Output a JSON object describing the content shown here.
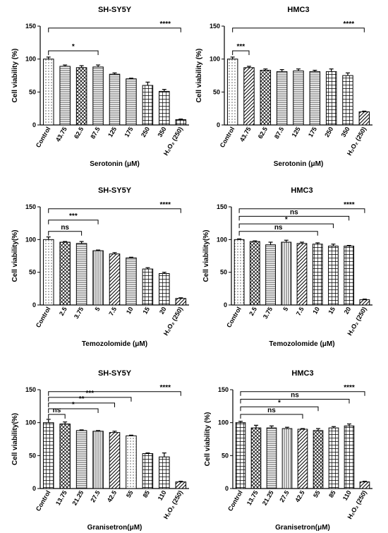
{
  "chart_data": [
    {
      "type": "bar",
      "title": "SH-SY5Y",
      "ylabel": "Cell viability (%)",
      "xlabel": "Serotonin (μM)",
      "ylim": [
        0,
        150
      ],
      "yticks": [
        0,
        50,
        100,
        150
      ],
      "categories": [
        "Control",
        "43.75",
        "62.5",
        "87.5",
        "125",
        "175",
        "250",
        "350",
        "H₂O₂ (250)"
      ],
      "values": [
        100,
        89,
        87,
        88,
        77,
        70,
        60,
        51,
        8
      ],
      "errors": [
        3,
        2,
        3,
        3,
        2,
        1,
        5,
        3,
        1
      ],
      "patterns": [
        "dots",
        "hlines",
        "cross",
        "hlines",
        "hlines",
        "hlines",
        "grid",
        "grid",
        "grid"
      ],
      "brackets": [
        {
          "from": 0,
          "to": 3,
          "label": "*"
        },
        {
          "from": 0,
          "to": 8,
          "label": "****"
        }
      ]
    },
    {
      "type": "bar",
      "title": "HMC3",
      "ylabel": "Cell viability (%)",
      "xlabel": "Serotonin (μM)",
      "ylim": [
        0,
        150
      ],
      "yticks": [
        0,
        50,
        100,
        150
      ],
      "categories": [
        "Control",
        "43.75",
        "62.5",
        "87.5",
        "125",
        "175",
        "250",
        "350",
        "H₂O₂ (250)"
      ],
      "values": [
        100,
        87,
        83,
        81,
        82,
        81,
        81,
        75,
        20
      ],
      "errors": [
        3,
        2,
        2,
        3,
        3,
        2,
        4,
        4,
        1
      ],
      "patterns": [
        "dots",
        "diag",
        "cross",
        "hlines",
        "hlines",
        "hlines",
        "grid",
        "grid",
        "diag"
      ],
      "brackets": [
        {
          "from": 0,
          "to": 1,
          "label": "***"
        },
        {
          "from": 0,
          "to": 8,
          "label": "****"
        }
      ]
    },
    {
      "type": "bar",
      "title": "SH-SY5Y",
      "ylabel": "Cell viability(%)",
      "xlabel": "Temozolomide (μM)",
      "ylim": [
        0,
        150
      ],
      "yticks": [
        0,
        50,
        100,
        150
      ],
      "categories": [
        "Control",
        "2.5",
        "3.75",
        "5",
        "7.5",
        "10",
        "15",
        "20",
        "H₂O₂ (250)"
      ],
      "values": [
        100,
        96,
        94,
        83,
        78,
        72,
        55,
        48,
        10
      ],
      "errors": [
        4,
        1,
        3,
        1,
        2,
        1,
        2,
        2,
        1
      ],
      "patterns": [
        "dots",
        "cross",
        "hlines",
        "vlines",
        "diag",
        "hlines",
        "grid",
        "grid",
        "diag"
      ],
      "brackets": [
        {
          "from": 0,
          "to": 2,
          "label": "ns"
        },
        {
          "from": 0,
          "to": 3,
          "label": "***"
        },
        {
          "from": 0,
          "to": 8,
          "label": "****"
        }
      ]
    },
    {
      "type": "bar",
      "title": "HMC3",
      "ylabel": "Cell viability(%)",
      "xlabel": "Temozolomide (μM)",
      "ylim": [
        0,
        150
      ],
      "yticks": [
        0,
        50,
        100,
        150
      ],
      "categories": [
        "Control",
        "2.5",
        "3.75",
        "5",
        "7.5",
        "10",
        "15",
        "20",
        "H₂O₂ (250)"
      ],
      "values": [
        100,
        97,
        92,
        96,
        94,
        93,
        90,
        90,
        8
      ],
      "errors": [
        1,
        1,
        4,
        3,
        2,
        2,
        3,
        1,
        1
      ],
      "patterns": [
        "dots",
        "cross",
        "hlines",
        "vlines",
        "diag",
        "grid",
        "grid",
        "grid",
        "diag"
      ],
      "brackets": [
        {
          "from": 0,
          "to": 5,
          "label": "ns"
        },
        {
          "from": 0,
          "to": 6,
          "label": "*"
        },
        {
          "from": 0,
          "to": 7,
          "label": "ns"
        },
        {
          "from": 0,
          "to": 8,
          "label": "****"
        }
      ]
    },
    {
      "type": "bar",
      "title": "SH-SY5Y",
      "ylabel": "Cell viability(%)",
      "xlabel": "Granisetron(μM)",
      "ylim": [
        0,
        150
      ],
      "yticks": [
        0,
        50,
        100,
        150
      ],
      "categories": [
        "Control",
        "13.75",
        "21.25",
        "27.5",
        "42.5",
        "55",
        "85",
        "110",
        "H₂O₂ (250)"
      ],
      "values": [
        100,
        98,
        88,
        87,
        85,
        80,
        53,
        48,
        10
      ],
      "errors": [
        5,
        3,
        1,
        1,
        2,
        1,
        1,
        6,
        1
      ],
      "patterns": [
        "grid",
        "cross",
        "hlines",
        "vlines",
        "diag",
        "dots",
        "grid",
        "grid",
        "diag"
      ],
      "brackets": [
        {
          "from": 0,
          "to": 1,
          "label": "ns"
        },
        {
          "from": 0,
          "to": 3,
          "label": "*"
        },
        {
          "from": 0,
          "to": 4,
          "label": "**"
        },
        {
          "from": 0,
          "to": 5,
          "label": "***"
        },
        {
          "from": 0,
          "to": 8,
          "label": "****"
        }
      ]
    },
    {
      "type": "bar",
      "title": "HMC3",
      "ylabel": "Cell viability (%)",
      "xlabel": "Granisetron(μM)",
      "ylim": [
        0,
        150
      ],
      "yticks": [
        0,
        50,
        100,
        150
      ],
      "categories": [
        "Control",
        "13.75",
        "21.25",
        "27.5",
        "42.5",
        "55",
        "85",
        "110",
        "H₂O₂ (250)"
      ],
      "values": [
        100,
        92,
        92,
        91,
        90,
        88,
        92,
        95,
        10
      ],
      "errors": [
        2,
        4,
        3,
        2,
        1,
        3,
        2,
        3,
        1
      ],
      "patterns": [
        "grid",
        "cross",
        "hlines",
        "vlines",
        "diag",
        "cross",
        "grid",
        "grid",
        "diag"
      ],
      "brackets": [
        {
          "from": 0,
          "to": 4,
          "label": "ns"
        },
        {
          "from": 0,
          "to": 5,
          "label": "*"
        },
        {
          "from": 0,
          "to": 7,
          "label": "ns"
        },
        {
          "from": 0,
          "to": 8,
          "label": "****"
        }
      ]
    }
  ]
}
